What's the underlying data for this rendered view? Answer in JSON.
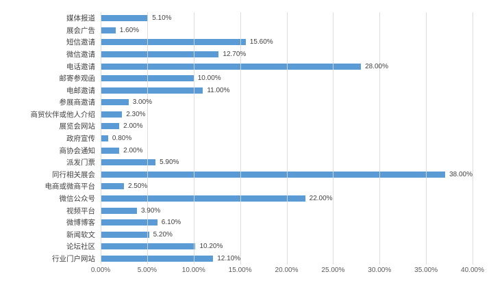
{
  "chart_data": {
    "type": "bar",
    "orientation": "horizontal",
    "title": "",
    "xlabel": "",
    "ylabel": "",
    "xlim": [
      0,
      40
    ],
    "grid": true,
    "legend": null,
    "bar_color": "#5B9BD5",
    "gridline_color": "#D9D9D9",
    "category_label_color": "#404040",
    "data_label_color": "#404040",
    "tick_label_color": "#595959",
    "categories": [
      "媒体报道",
      "展会广告",
      "短信邀请",
      "微信邀请",
      "电话邀请",
      "邮寄参观函",
      "电邮邀请",
      "参展商邀请",
      "商贸伙伴或他人介绍",
      "展览会网站",
      "政府宣传",
      "商协会通知",
      "派发门票",
      "同行相关展会",
      "电商或微商平台",
      "微信公众号",
      "视频平台",
      "微博博客",
      "新闻软文",
      "论坛社区",
      "行业门户网站"
    ],
    "values": [
      5.1,
      1.6,
      15.6,
      12.7,
      28.0,
      10.0,
      11.0,
      3.0,
      2.3,
      2.0,
      0.8,
      2.0,
      5.9,
      38.0,
      2.5,
      22.0,
      3.9,
      6.1,
      5.2,
      10.2,
      12.1
    ],
    "data_labels": [
      "5.10%",
      "1.60%",
      "15.60%",
      "12.70%",
      "28.00%",
      "10.00%",
      "11.00%",
      "3.00%",
      "2.30%",
      "2.00%",
      "0.80%",
      "2.00%",
      "5.90%",
      "38.00%",
      "2.50%",
      "22.00%",
      "3.90%",
      "6.10%",
      "5.20%",
      "10.20%",
      "12.10%"
    ],
    "x_tick_values": [
      0,
      5,
      10,
      15,
      20,
      25,
      30,
      35,
      40
    ],
    "x_tick_labels": [
      "0.00%",
      "5.00%",
      "10.00%",
      "15.00%",
      "20.00%",
      "25.00%",
      "30.00%",
      "35.00%",
      "40.00%"
    ]
  }
}
